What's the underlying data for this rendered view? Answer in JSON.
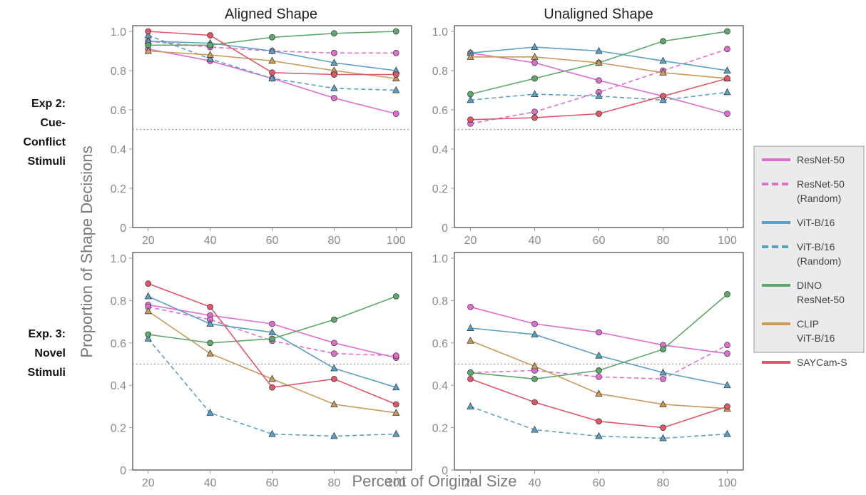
{
  "figure": {
    "column_titles": [
      "Aligned Shape",
      "Unaligned Shape"
    ],
    "row_labels": [
      [
        "Exp 2:",
        "Cue-",
        "Conflict",
        "Stimuli"
      ],
      [
        "Exp. 3:",
        "Novel",
        "Stimuli"
      ]
    ],
    "xlabel": "Percent of Original Size",
    "ylabel": "Proportion of Shape Decisions"
  },
  "legend": [
    {
      "lines": [
        "ResNet-50"
      ],
      "color": "#df6ecf",
      "dashed": false
    },
    {
      "lines": [
        "ResNet-50",
        "(Random)"
      ],
      "color": "#df6ecf",
      "dashed": true
    },
    {
      "lines": [
        "ViT-B/16"
      ],
      "color": "#5aa0c2",
      "dashed": false
    },
    {
      "lines": [
        "ViT-B/16",
        "(Random)"
      ],
      "color": "#5aa0c2",
      "dashed": true
    },
    {
      "lines": [
        "DINO",
        "ResNet-50"
      ],
      "color": "#5ea86d",
      "dashed": false
    },
    {
      "lines": [
        "CLIP",
        "ViT-B/16"
      ],
      "color": "#c99a5c",
      "dashed": false
    },
    {
      "lines": [
        "SAYCam-S"
      ],
      "color": "#e0566b",
      "dashed": false
    }
  ],
  "chart_data": [
    {
      "type": "line",
      "panel": "Exp 2 - Aligned Shape",
      "x": [
        20,
        40,
        60,
        80,
        100
      ],
      "xlim": [
        15,
        105
      ],
      "ylim": [
        0,
        1.0
      ],
      "yticks": [
        "0",
        "0.2",
        "0.4",
        "0.6",
        "0.8",
        "1.0"
      ],
      "reference_line": 0.5,
      "series": [
        {
          "name": "ResNet-50",
          "values": [
            0.91,
            0.85,
            0.76,
            0.66,
            0.58
          ],
          "color": "#df6ecf",
          "dashed": false,
          "marker": "circle"
        },
        {
          "name": "ResNet-50 (Random)",
          "values": [
            0.95,
            0.92,
            0.9,
            0.89,
            0.89
          ],
          "color": "#df6ecf",
          "dashed": true,
          "marker": "circle"
        },
        {
          "name": "ViT-B/16",
          "values": [
            0.95,
            0.94,
            0.9,
            0.84,
            0.8
          ],
          "color": "#5aa0c2",
          "dashed": false,
          "marker": "triangle"
        },
        {
          "name": "ViT-B/16 (Random)",
          "values": [
            0.98,
            0.86,
            0.76,
            0.71,
            0.7
          ],
          "color": "#5aa0c2",
          "dashed": true,
          "marker": "triangle"
        },
        {
          "name": "DINO ResNet-50",
          "values": [
            0.93,
            0.93,
            0.97,
            0.99,
            1.0
          ],
          "color": "#5ea86d",
          "dashed": false,
          "marker": "circle"
        },
        {
          "name": "CLIP ViT-B/16",
          "values": [
            0.9,
            0.88,
            0.85,
            0.8,
            0.76
          ],
          "color": "#c99a5c",
          "dashed": false,
          "marker": "triangle"
        },
        {
          "name": "SAYCam-S",
          "values": [
            1.0,
            0.98,
            0.79,
            0.78,
            0.78
          ],
          "color": "#e0566b",
          "dashed": false,
          "marker": "circle"
        }
      ]
    },
    {
      "type": "line",
      "panel": "Exp 2 - Unaligned Shape",
      "x": [
        20,
        40,
        60,
        80,
        100
      ],
      "xlim": [
        15,
        105
      ],
      "ylim": [
        0,
        1.0
      ],
      "yticks": [
        "0",
        "0.2",
        "0.4",
        "0.6",
        "0.8",
        "1.0"
      ],
      "reference_line": 0.5,
      "series": [
        {
          "name": "ResNet-50",
          "values": [
            0.89,
            0.84,
            0.75,
            0.67,
            0.58
          ],
          "color": "#df6ecf",
          "dashed": false,
          "marker": "circle"
        },
        {
          "name": "ResNet-50 (Random)",
          "values": [
            0.53,
            0.59,
            0.69,
            0.8,
            0.91
          ],
          "color": "#df6ecf",
          "dashed": true,
          "marker": "circle"
        },
        {
          "name": "ViT-B/16",
          "values": [
            0.89,
            0.92,
            0.9,
            0.85,
            0.8
          ],
          "color": "#5aa0c2",
          "dashed": false,
          "marker": "triangle"
        },
        {
          "name": "ViT-B/16 (Random)",
          "values": [
            0.65,
            0.68,
            0.67,
            0.65,
            0.69
          ],
          "color": "#5aa0c2",
          "dashed": true,
          "marker": "triangle"
        },
        {
          "name": "DINO ResNet-50",
          "values": [
            0.68,
            0.76,
            0.84,
            0.95,
            1.0
          ],
          "color": "#5ea86d",
          "dashed": false,
          "marker": "circle"
        },
        {
          "name": "CLIP ViT-B/16",
          "values": [
            0.87,
            0.87,
            0.84,
            0.79,
            0.76
          ],
          "color": "#c99a5c",
          "dashed": false,
          "marker": "triangle"
        },
        {
          "name": "SAYCam-S",
          "values": [
            0.55,
            0.56,
            0.58,
            0.67,
            0.76
          ],
          "color": "#e0566b",
          "dashed": false,
          "marker": "circle"
        }
      ]
    },
    {
      "type": "line",
      "panel": "Exp. 3 - Aligned Shape",
      "x": [
        20,
        40,
        60,
        80,
        100
      ],
      "xlim": [
        15,
        105
      ],
      "ylim": [
        0,
        1.0
      ],
      "yticks": [
        "0",
        "0.2",
        "0.4",
        "0.6",
        "0.8",
        "1.0"
      ],
      "reference_line": 0.5,
      "series": [
        {
          "name": "ResNet-50",
          "values": [
            0.78,
            0.73,
            0.69,
            0.6,
            0.53
          ],
          "color": "#df6ecf",
          "dashed": false,
          "marker": "circle"
        },
        {
          "name": "ResNet-50 (Random)",
          "values": [
            0.77,
            0.71,
            0.61,
            0.55,
            0.54
          ],
          "color": "#df6ecf",
          "dashed": true,
          "marker": "circle"
        },
        {
          "name": "ViT-B/16",
          "values": [
            0.82,
            0.69,
            0.65,
            0.48,
            0.39
          ],
          "color": "#5aa0c2",
          "dashed": false,
          "marker": "triangle"
        },
        {
          "name": "ViT-B/16 (Random)",
          "values": [
            0.62,
            0.27,
            0.17,
            0.16,
            0.17
          ],
          "color": "#5aa0c2",
          "dashed": true,
          "marker": "triangle"
        },
        {
          "name": "DINO ResNet-50",
          "values": [
            0.64,
            0.6,
            0.62,
            0.71,
            0.82
          ],
          "color": "#5ea86d",
          "dashed": false,
          "marker": "circle"
        },
        {
          "name": "CLIP ViT-B/16",
          "values": [
            0.75,
            0.55,
            0.43,
            0.31,
            0.27
          ],
          "color": "#c99a5c",
          "dashed": false,
          "marker": "triangle"
        },
        {
          "name": "SAYCam-S",
          "values": [
            0.88,
            0.77,
            0.39,
            0.43,
            0.31
          ],
          "color": "#e0566b",
          "dashed": false,
          "marker": "circle"
        }
      ]
    },
    {
      "type": "line",
      "panel": "Exp. 3 - Unaligned Shape",
      "x": [
        20,
        40,
        60,
        80,
        100
      ],
      "xlim": [
        15,
        105
      ],
      "ylim": [
        0,
        1.0
      ],
      "yticks": [
        "0",
        "0.2",
        "0.4",
        "0.6",
        "0.8",
        "1.0"
      ],
      "reference_line": 0.5,
      "series": [
        {
          "name": "ResNet-50",
          "values": [
            0.77,
            0.69,
            0.65,
            0.59,
            0.55
          ],
          "color": "#df6ecf",
          "dashed": false,
          "marker": "circle"
        },
        {
          "name": "ResNet-50 (Random)",
          "values": [
            0.46,
            0.47,
            0.44,
            0.43,
            0.59
          ],
          "color": "#df6ecf",
          "dashed": true,
          "marker": "circle"
        },
        {
          "name": "ViT-B/16",
          "values": [
            0.67,
            0.64,
            0.54,
            0.46,
            0.4
          ],
          "color": "#5aa0c2",
          "dashed": false,
          "marker": "triangle"
        },
        {
          "name": "ViT-B/16 (Random)",
          "values": [
            0.3,
            0.19,
            0.16,
            0.15,
            0.17
          ],
          "color": "#5aa0c2",
          "dashed": true,
          "marker": "triangle"
        },
        {
          "name": "DINO ResNet-50",
          "values": [
            0.46,
            0.43,
            0.47,
            0.57,
            0.83
          ],
          "color": "#5ea86d",
          "dashed": false,
          "marker": "circle"
        },
        {
          "name": "CLIP ViT-B/16",
          "values": [
            0.61,
            0.49,
            0.36,
            0.31,
            0.29
          ],
          "color": "#c99a5c",
          "dashed": false,
          "marker": "triangle"
        },
        {
          "name": "SAYCam-S",
          "values": [
            0.43,
            0.32,
            0.23,
            0.2,
            0.3
          ],
          "color": "#e0566b",
          "dashed": false,
          "marker": "circle"
        }
      ]
    }
  ]
}
